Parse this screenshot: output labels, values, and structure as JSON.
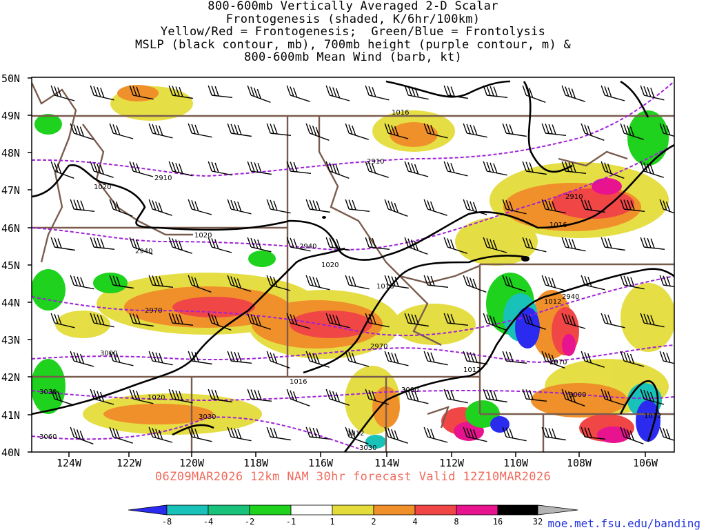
{
  "title": {
    "line1": "800-600mb Vertically Averaged 2-D Scalar",
    "line2": "Frontogenesis (shaded, K/6hr/100km)",
    "line3": "Yellow/Red = Frontogenesis;  Green/Blue = Frontolysis",
    "line4": "MSLP (black contour, mb), 700mb height (purple contour, m) &",
    "line5": "800-600mb Mean Wind (barb, kt)"
  },
  "forecast": "06Z09MAR2026 12km NAM 30hr forecast Valid 12Z10MAR2026",
  "url": "moe.met.fsu.edu/banding",
  "map": {
    "lat_labels": [
      "50N",
      "49N",
      "48N",
      "47N",
      "46N",
      "45N",
      "44N",
      "43N",
      "42N",
      "41N",
      "40N"
    ],
    "lon_labels": [
      "124W",
      "122W",
      "120W",
      "118W",
      "116W",
      "114W",
      "112W",
      "110W",
      "108W",
      "106W"
    ],
    "mslp_labels": [
      "1016",
      "1020",
      "1020",
      "1020",
      "1016",
      "1016",
      "1012",
      "1016",
      "1012",
      "1012",
      "1020",
      "1012"
    ],
    "height_labels": [
      "2910",
      "2910",
      "2910",
      "2940",
      "2940",
      "2940",
      "2970",
      "2970",
      "2970",
      "3000",
      "3000",
      "3000",
      "3030",
      "3030",
      "3030",
      "3060"
    ]
  },
  "colorbar": {
    "ticks": [
      "-8",
      "-4",
      "-2",
      "-1",
      "1",
      "2",
      "4",
      "8",
      "16",
      "32"
    ],
    "colors": [
      "#2b2bf0",
      "#19c2b8",
      "#19c27a",
      "#1ed21e",
      "#ffffff",
      "#e4dc3a",
      "#f0902a",
      "#f04646",
      "#e8138e",
      "#000000",
      "#b4b4b4"
    ]
  },
  "colors": {
    "state_borders": "#7a5c4e",
    "mslp_contour": "#000000",
    "height_contour": "#a020d8",
    "forecast_text": "#f06a5c",
    "url_text": "#2233dd"
  }
}
